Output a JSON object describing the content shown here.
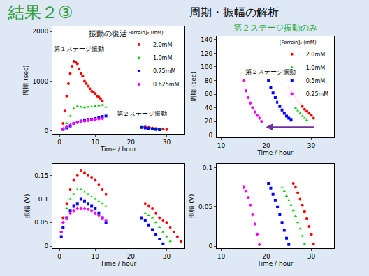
{
  "title": "結果２③",
  "subtitle": "周期・振幅の解析",
  "chart_data": [
    {
      "type": "scatter",
      "title": "振動の復活",
      "xlabel": "Time / hour",
      "ylabel": "周期 (sec)",
      "xlim": [
        -2,
        35
      ],
      "xticks": [
        0,
        10,
        20,
        30
      ],
      "ylim": [
        -60,
        2100
      ],
      "yticks": [
        0,
        1000,
        2000
      ],
      "grid": false,
      "legend": "top right",
      "legend_title": "[Ferroin]₀ (mM)",
      "annotations": [
        {
          "text": "第１ステージ振動",
          "x": 5.5,
          "y": 1650
        },
        {
          "text": "第２ステージ振動",
          "x": 23,
          "y": 350
        }
      ],
      "series": [
        {
          "name": "2.0mM",
          "color": "#ff0000",
          "marker": "circle",
          "x": [
            1,
            1.5,
            2,
            2.5,
            3,
            3.5,
            4,
            4.5,
            5,
            5.5,
            6,
            6.5,
            7,
            7.5,
            8,
            8.5,
            9,
            9.5,
            10,
            10.5,
            11,
            11.5,
            12,
            24,
            25,
            26,
            27,
            28,
            29,
            30
          ],
          "values": [
            150,
            400,
            700,
            950,
            1150,
            1300,
            1400,
            1380,
            1350,
            1250,
            1150,
            1100,
            1000,
            950,
            900,
            850,
            800,
            780,
            750,
            700,
            680,
            650,
            600,
            80,
            70,
            60,
            50,
            40,
            35,
            30
          ]
        },
        {
          "name": "1.0mM",
          "color": "#00cc00",
          "marker": "triangle",
          "x": [
            1,
            2,
            3,
            4,
            5,
            6,
            7,
            8,
            9,
            10,
            11,
            12,
            13,
            23.5,
            24.5,
            25.5,
            26.5,
            27.5,
            28.5
          ],
          "values": [
            50,
            150,
            300,
            450,
            500,
            480,
            470,
            480,
            490,
            500,
            510,
            520,
            480,
            75,
            65,
            55,
            45,
            35,
            28
          ]
        },
        {
          "name": "0.75mM",
          "color": "#0000ff",
          "marker": "square",
          "x": [
            1,
            2,
            3,
            4,
            5,
            6,
            7,
            8,
            9,
            10,
            11,
            12,
            13,
            23,
            24,
            25,
            26,
            27,
            28
          ],
          "values": [
            30,
            60,
            100,
            150,
            180,
            200,
            210,
            220,
            230,
            250,
            270,
            290,
            300,
            70,
            60,
            50,
            40,
            30,
            25
          ]
        },
        {
          "name": "0.625mM",
          "color": "#ff00ff",
          "marker": "diamond",
          "x": [
            1,
            2,
            3,
            4,
            5,
            6,
            7,
            8,
            9,
            10,
            11,
            12
          ],
          "values": [
            40,
            80,
            120,
            150,
            170,
            190,
            200,
            210,
            220,
            230,
            240,
            250
          ]
        }
      ]
    },
    {
      "type": "scatter",
      "title": "第２ステージ振動のみ",
      "xlabel": "Time / hour",
      "ylabel": "周期 (sec)",
      "xlim": [
        9,
        35
      ],
      "xticks": [
        10,
        20,
        30
      ],
      "ylim": [
        -3,
        145
      ],
      "yticks": [
        0,
        20,
        40,
        60,
        80,
        100,
        120,
        140
      ],
      "grid": false,
      "legend": "top right",
      "legend_title": "[Ferroin]₀ (mM)",
      "annotations": [
        {
          "text": "第２ステージ振動",
          "x": 21,
          "y": 93
        }
      ],
      "series": [
        {
          "name": "2.0mM",
          "color": "#ff0000",
          "marker": "circle",
          "x": [
            25,
            25.5,
            26,
            26.5,
            27,
            27.5,
            28,
            28.5,
            29,
            29.5,
            30,
            30.5
          ],
          "values": [
            70,
            65,
            60,
            55,
            50,
            46,
            42,
            38,
            35,
            32,
            29,
            25
          ]
        },
        {
          "name": "1.0mM",
          "color": "#00cc00",
          "marker": "triangle",
          "x": [
            23.5,
            24,
            24.5,
            25,
            25.5,
            26,
            26.5,
            27,
            27.5,
            28,
            28.5,
            29
          ],
          "values": [
            75,
            68,
            62,
            56,
            50,
            45,
            40,
            36,
            32,
            28,
            25,
            22
          ]
        },
        {
          "name": "0.5mM",
          "color": "#0000ff",
          "marker": "square",
          "x": [
            20.5,
            21,
            21.5,
            22,
            22.5,
            23,
            23.5,
            24,
            24.5,
            25,
            25.5
          ],
          "values": [
            80,
            70,
            62,
            55,
            48,
            42,
            37,
            32,
            28,
            25,
            22
          ]
        },
        {
          "name": "0.25mM",
          "color": "#ff00ff",
          "marker": "diamond",
          "x": [
            15,
            15.5,
            16,
            16.5,
            17,
            17.5,
            18,
            18.5,
            19
          ],
          "values": [
            80,
            65,
            55,
            47,
            40,
            34,
            29,
            25,
            20
          ]
        }
      ]
    },
    {
      "type": "scatter",
      "xlabel": "Time / hour",
      "ylabel": "振幅 (V)",
      "xlim": [
        -2,
        35
      ],
      "xticks": [
        0,
        10,
        20,
        30
      ],
      "ylim": [
        -0.005,
        0.175
      ],
      "yticks": [
        0,
        0.05,
        0.1,
        0.15
      ],
      "grid": false,
      "series": [
        {
          "name": "2.0mM",
          "color": "#ff0000",
          "marker": "circle",
          "x": [
            0.5,
            1,
            2,
            3,
            4,
            5,
            6,
            7,
            8,
            9,
            10,
            11,
            12,
            13,
            24,
            25,
            26,
            27,
            28,
            29,
            30,
            31,
            32,
            33,
            34
          ],
          "values": [
            0.03,
            0.06,
            0.09,
            0.12,
            0.14,
            0.15,
            0.16,
            0.155,
            0.15,
            0.145,
            0.14,
            0.13,
            0.12,
            0.11,
            0.09,
            0.085,
            0.08,
            0.07,
            0.06,
            0.055,
            0.05,
            0.04,
            0.03,
            0.02,
            0.01
          ]
        },
        {
          "name": "1.0mM",
          "color": "#00cc00",
          "marker": "triangle",
          "x": [
            0.5,
            1,
            2,
            3,
            4,
            5,
            6,
            7,
            8,
            9,
            10,
            11,
            12,
            13,
            24,
            25,
            26,
            27,
            28,
            29,
            30,
            31
          ],
          "values": [
            0.03,
            0.05,
            0.08,
            0.1,
            0.11,
            0.12,
            0.12,
            0.115,
            0.11,
            0.105,
            0.1,
            0.095,
            0.09,
            0.085,
            0.07,
            0.065,
            0.06,
            0.05,
            0.04,
            0.03,
            0.02,
            0.01
          ]
        },
        {
          "name": "0.75mM",
          "color": "#0000ff",
          "marker": "square",
          "x": [
            0.5,
            1,
            2,
            3,
            4,
            5,
            6,
            7,
            8,
            9,
            10,
            11,
            12,
            13,
            23,
            24,
            25,
            26,
            27,
            28,
            29
          ],
          "values": [
            0.02,
            0.04,
            0.06,
            0.075,
            0.085,
            0.09,
            0.1,
            0.095,
            0.09,
            0.085,
            0.08,
            0.07,
            0.06,
            0.05,
            0.06,
            0.055,
            0.045,
            0.035,
            0.025,
            0.015,
            0.005
          ]
        },
        {
          "name": "0.625mM",
          "color": "#ff00ff",
          "marker": "diamond",
          "x": [
            0.5,
            1,
            2,
            3,
            4,
            5,
            6,
            7,
            8,
            9,
            10,
            11,
            12,
            13
          ],
          "values": [
            0.03,
            0.05,
            0.06,
            0.07,
            0.075,
            0.08,
            0.08,
            0.08,
            0.078,
            0.075,
            0.07,
            0.065,
            0.06,
            0.055
          ]
        }
      ]
    },
    {
      "type": "scatter",
      "xlabel": "Time / hour",
      "ylabel": "振幅 (V)",
      "xlim": [
        9,
        35
      ],
      "xticks": [
        10,
        20,
        30
      ],
      "ylim": [
        -0.003,
        0.105
      ],
      "yticks": [
        0,
        0.05,
        0.1
      ],
      "grid": false,
      "series": [
        {
          "name": "2.0mM",
          "color": "#ff0000",
          "marker": "circle",
          "x": [
            26,
            26.5,
            27,
            27.5,
            28,
            28.5,
            29,
            29.5,
            30,
            30.5
          ],
          "values": [
            0.08,
            0.075,
            0.068,
            0.06,
            0.052,
            0.044,
            0.035,
            0.025,
            0.015,
            0.003
          ]
        },
        {
          "name": "1.0mM",
          "color": "#00cc00",
          "marker": "triangle",
          "x": [
            23.5,
            24,
            24.5,
            25,
            25.5,
            26,
            26.5,
            27,
            27.5,
            28,
            28.5
          ],
          "values": [
            0.075,
            0.07,
            0.064,
            0.058,
            0.052,
            0.045,
            0.038,
            0.03,
            0.022,
            0.013,
            0.003
          ]
        },
        {
          "name": "0.5mM",
          "color": "#0000ff",
          "marker": "square",
          "x": [
            20.5,
            21,
            21.5,
            22,
            22.5,
            23,
            23.5,
            24,
            24.5,
            25
          ],
          "values": [
            0.08,
            0.074,
            0.066,
            0.058,
            0.05,
            0.04,
            0.03,
            0.02,
            0.01,
            0.002
          ]
        },
        {
          "name": "0.25mM",
          "color": "#ff00ff",
          "marker": "diamond",
          "x": [
            15,
            15.5,
            16,
            16.5,
            17,
            17.5,
            18,
            18.5
          ],
          "values": [
            0.075,
            0.07,
            0.062,
            0.052,
            0.04,
            0.028,
            0.015,
            0.002
          ]
        }
      ]
    }
  ]
}
